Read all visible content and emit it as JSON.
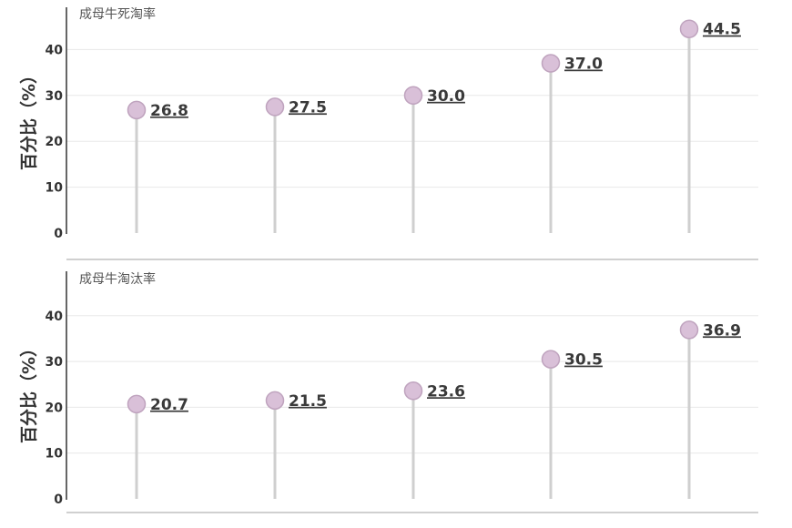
{
  "colors": {
    "dot_fill": "#d9c0d8",
    "dot_stroke": "#bfa3be",
    "stem": "#cfcfcf",
    "grid": "#e8e8e8",
    "axis": "#333333",
    "divider": "#d0d0d0"
  },
  "chart_data": [
    {
      "type": "lollipop",
      "title": "成母牛死淘率",
      "ylabel": "百分比（%）",
      "ylim": [
        0,
        45
      ],
      "yticks": [
        0,
        10,
        20,
        30,
        40
      ],
      "categories": [
        "",
        "",
        "",
        "",
        ""
      ],
      "values": [
        26.8,
        27.5,
        30.0,
        37.0,
        44.5
      ],
      "value_labels": [
        "26.8",
        "27.5",
        "30.0",
        "37.0",
        "44.5"
      ],
      "grid": true
    },
    {
      "type": "lollipop",
      "title": "成母牛淘汰率",
      "ylabel": "百分比（%）",
      "ylim": [
        0,
        40
      ],
      "yticks": [
        0,
        10,
        20,
        30,
        40
      ],
      "categories": [
        "",
        "",
        "",
        "",
        ""
      ],
      "values": [
        20.7,
        21.5,
        23.6,
        30.5,
        36.9
      ],
      "value_labels": [
        "20.7",
        "21.5",
        "23.6",
        "30.5",
        "36.9"
      ],
      "grid": true
    }
  ]
}
